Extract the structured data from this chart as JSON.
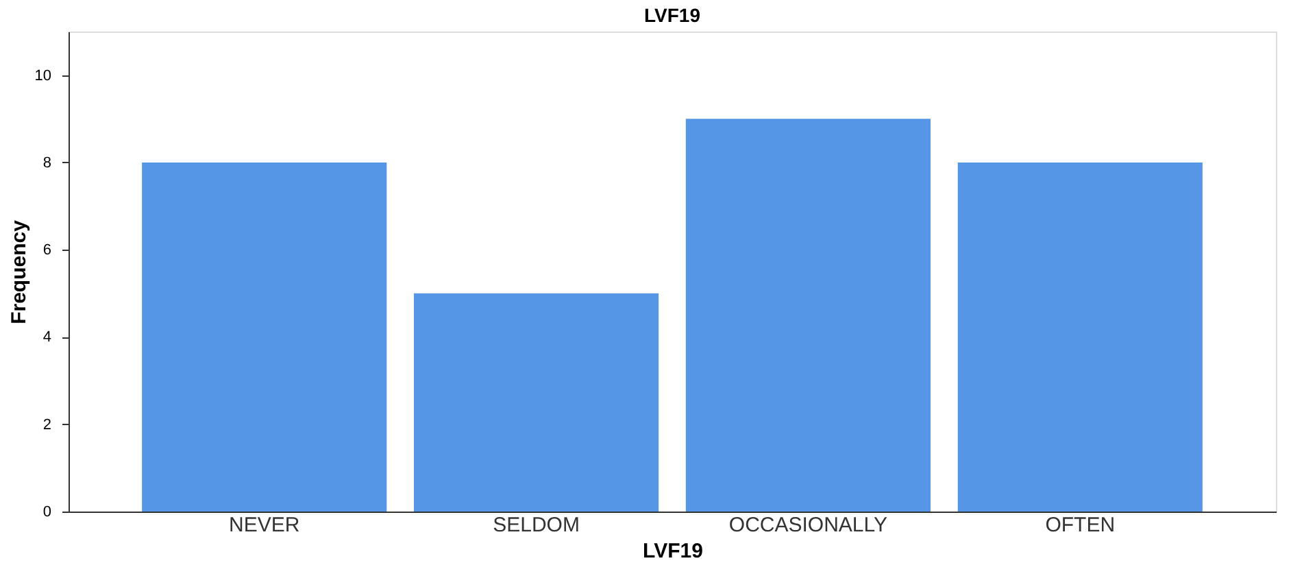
{
  "chart_data": {
    "type": "bar",
    "title": "LVF19",
    "xlabel": "LVF19",
    "ylabel": "Frequency",
    "categories": [
      "NEVER",
      "SELDOM",
      "OCCASIONALLY",
      "OFTEN"
    ],
    "values": [
      8,
      5,
      9,
      8
    ],
    "color": "#5596e6",
    "ylim": [
      0,
      11
    ],
    "yticks": [
      0,
      2,
      4,
      6,
      8,
      10
    ],
    "grid": false
  }
}
